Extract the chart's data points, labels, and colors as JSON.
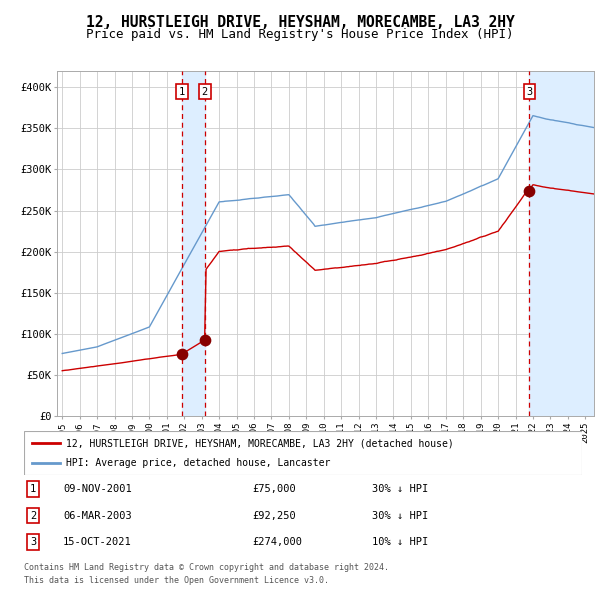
{
  "title": "12, HURSTLEIGH DRIVE, HEYSHAM, MORECAMBE, LA3 2HY",
  "subtitle": "Price paid vs. HM Land Registry's House Price Index (HPI)",
  "title_fontsize": 10.5,
  "subtitle_fontsize": 9,
  "ylabel_ticks": [
    "£0",
    "£50K",
    "£100K",
    "£150K",
    "£200K",
    "£250K",
    "£300K",
    "£350K",
    "£400K"
  ],
  "ytick_values": [
    0,
    50000,
    100000,
    150000,
    200000,
    250000,
    300000,
    350000,
    400000
  ],
  "ylim": [
    0,
    420000
  ],
  "xlim_start": 1994.7,
  "xlim_end": 2025.5,
  "sale_dates": [
    2001.86,
    2003.18,
    2021.79
  ],
  "sale_prices": [
    75000,
    92250,
    274000
  ],
  "sale_labels": [
    "1",
    "2",
    "3"
  ],
  "sale_info": [
    {
      "num": "1",
      "date": "09-NOV-2001",
      "price": "£75,000",
      "note": "30% ↓ HPI"
    },
    {
      "num": "2",
      "date": "06-MAR-2003",
      "price": "£92,250",
      "note": "30% ↓ HPI"
    },
    {
      "num": "3",
      "date": "15-OCT-2021",
      "price": "£274,000",
      "note": "10% ↓ HPI"
    }
  ],
  "legend_line1": "12, HURSTLEIGH DRIVE, HEYSHAM, MORECAMBE, LA3 2HY (detached house)",
  "legend_line2": "HPI: Average price, detached house, Lancaster",
  "footer1": "Contains HM Land Registry data © Crown copyright and database right 2024.",
  "footer2": "This data is licensed under the Open Government Licence v3.0.",
  "red_color": "#cc0000",
  "blue_color": "#6699cc",
  "dot_color": "#880000",
  "vline_color": "#cc0000",
  "shade_color": "#ddeeff",
  "background_color": "#ffffff",
  "grid_color": "#cccccc"
}
